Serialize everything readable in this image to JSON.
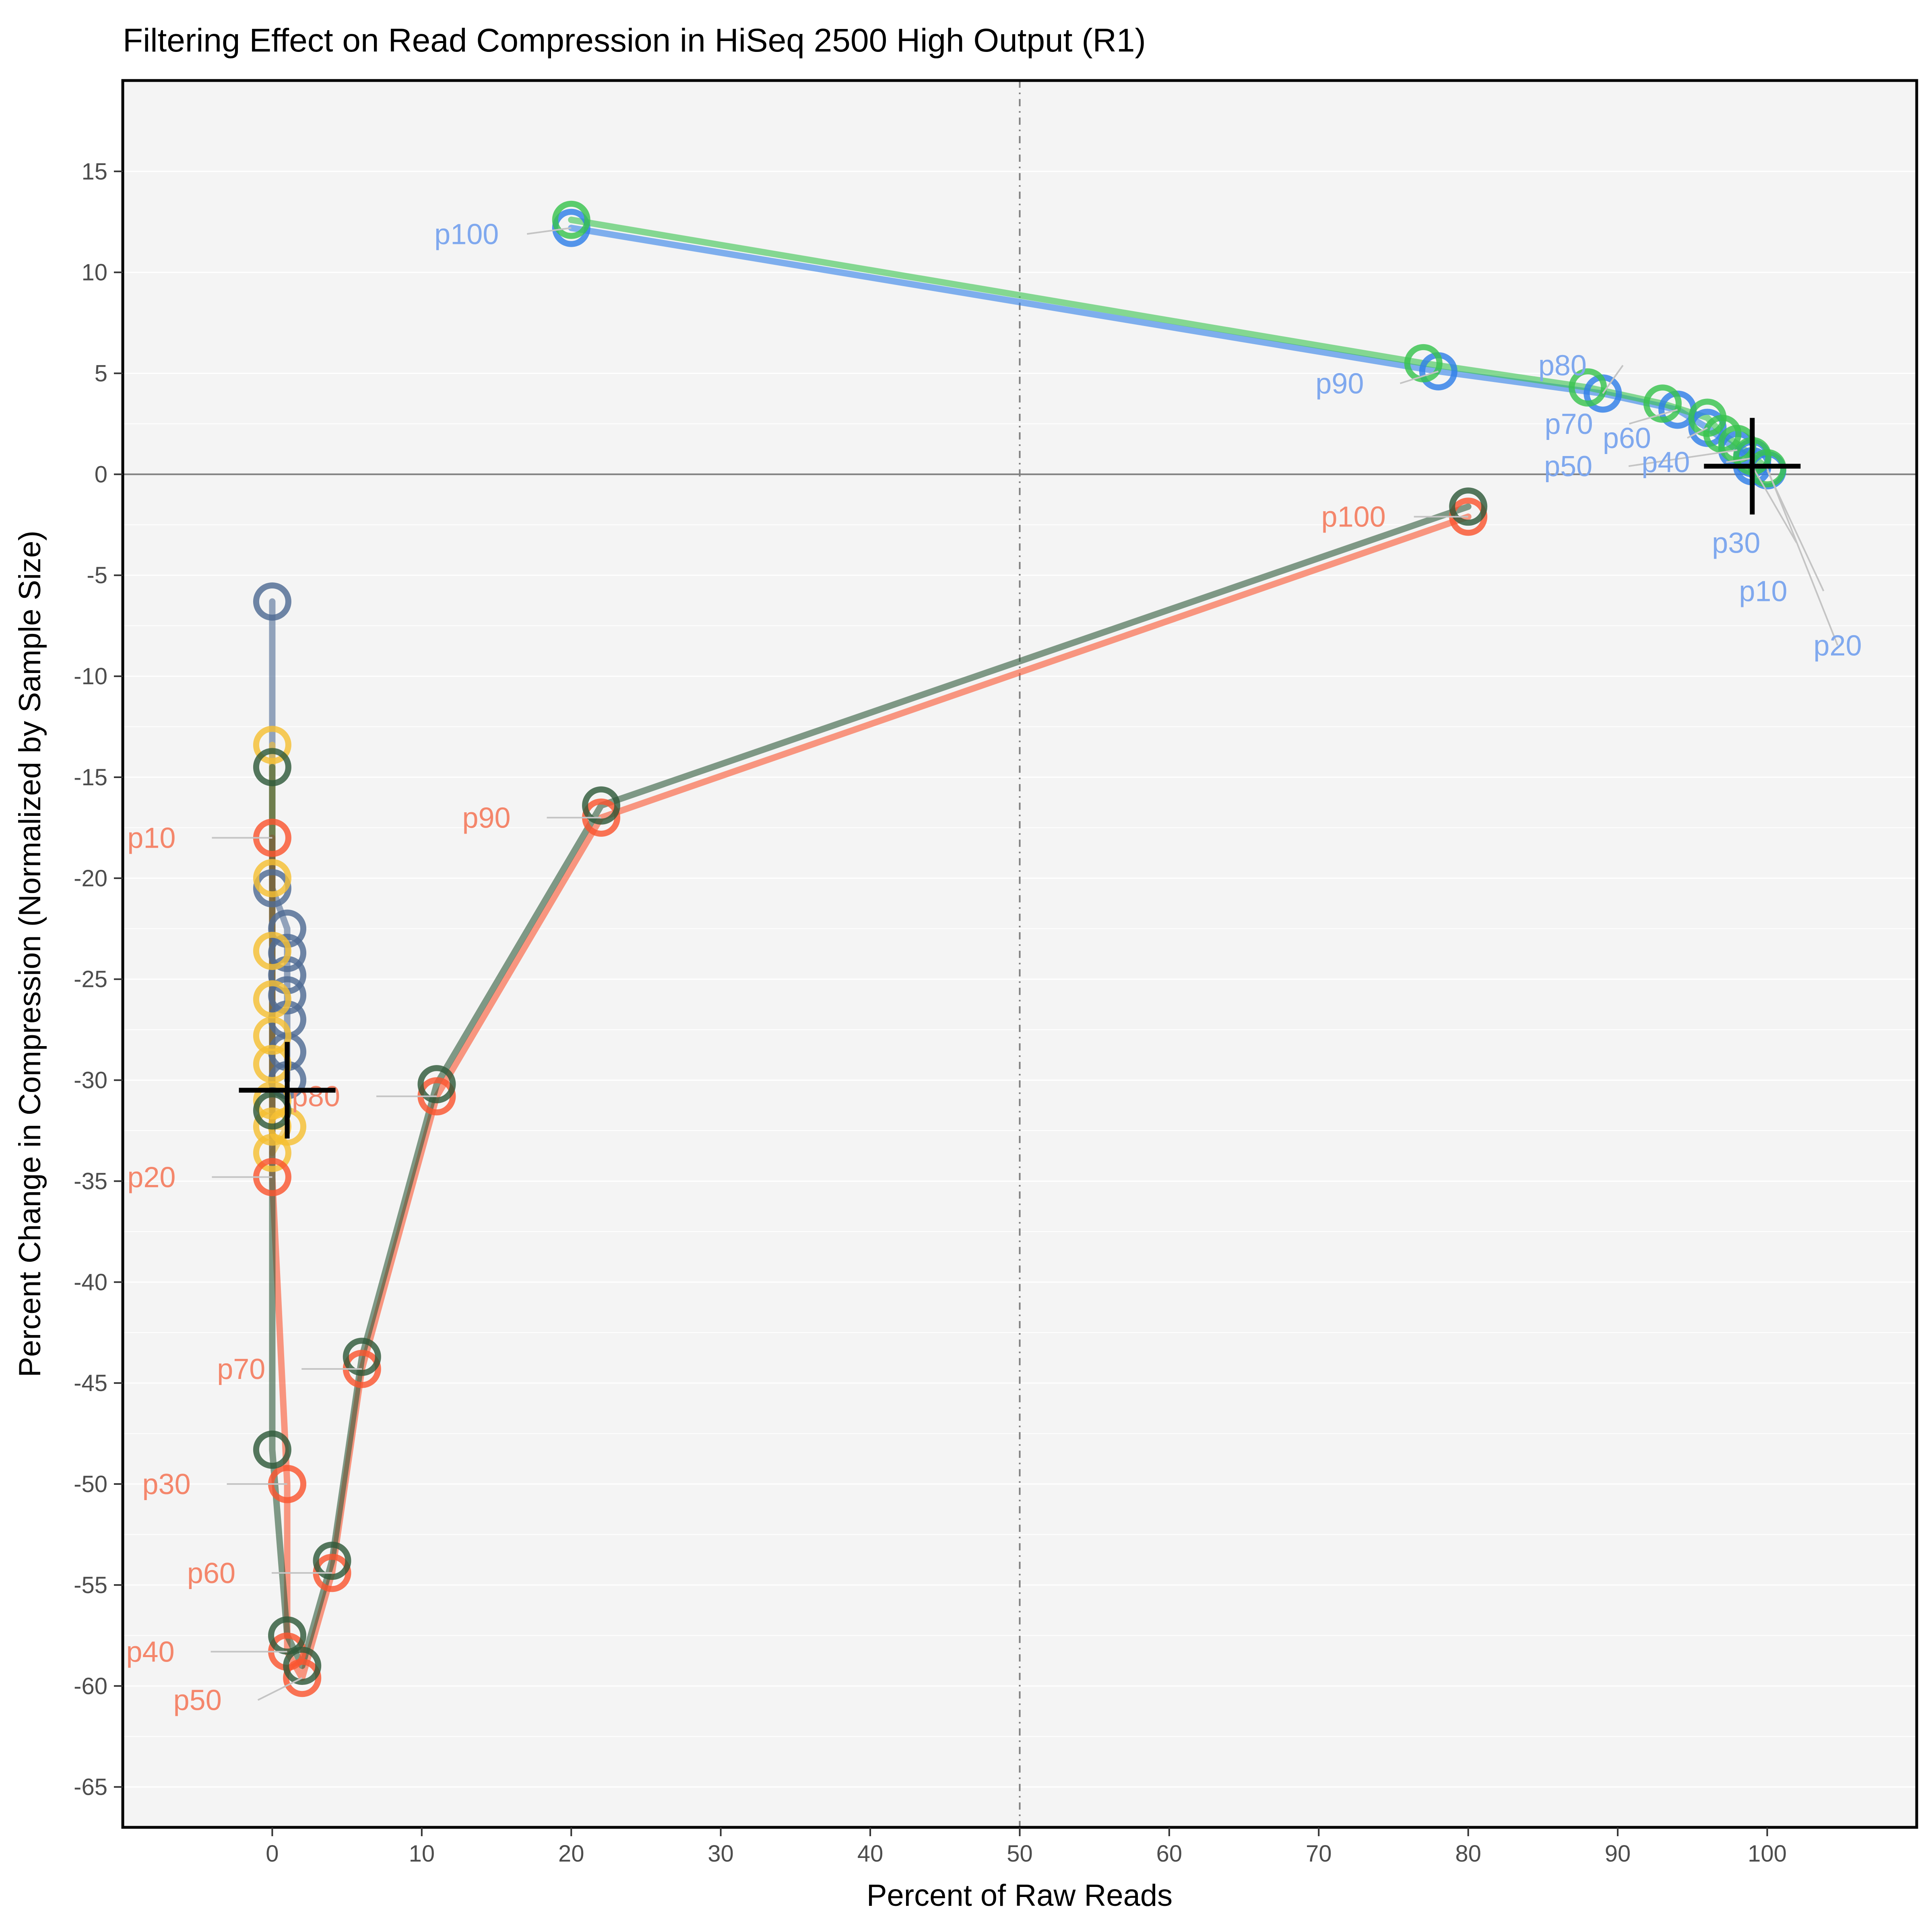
{
  "chart_data": {
    "type": "scatter",
    "title": "Filtering Effect on Read Compression in HiSeq 2500 High Output (R1)",
    "xlabel": "Percent of Raw Reads",
    "ylabel": "Percent Change in Compression (Normalized by Sample Size)",
    "xlim": [
      -10,
      110
    ],
    "ylim": [
      -67,
      19.5
    ],
    "xticks": [
      0,
      10,
      20,
      30,
      40,
      50,
      60,
      70,
      80,
      90,
      100
    ],
    "yticks": [
      15,
      10,
      5,
      0,
      -5,
      -10,
      -15,
      -20,
      -25,
      -30,
      -35,
      -40,
      -45,
      -50,
      -55,
      -60,
      -65
    ],
    "grid": true,
    "legend": "none",
    "reference_lines": {
      "vertical_x": 50,
      "horizontal_y": 0
    },
    "series": [
      {
        "color": "#4f6b94",
        "points": [
          [
            0,
            -6.3
          ],
          [
            0,
            -20.5
          ],
          [
            1,
            -22.5
          ],
          [
            1,
            -23.7
          ],
          [
            1,
            -24.8
          ],
          [
            1,
            -25.8
          ],
          [
            1,
            -27
          ],
          [
            1,
            -28.6
          ],
          [
            1,
            -30
          ]
        ]
      },
      {
        "color": "#f5c033",
        "points": [
          [
            0,
            -13.4
          ],
          [
            0,
            -20
          ],
          [
            0,
            -23.6
          ],
          [
            0,
            -26
          ],
          [
            0,
            -27.8
          ],
          [
            0,
            -29.2
          ],
          [
            0,
            -31
          ],
          [
            0,
            -32.3
          ],
          [
            1,
            -32.3
          ],
          [
            0,
            -33.6
          ]
        ]
      },
      {
        "color": "#fa5530",
        "points": [
          [
            0,
            -18
          ],
          [
            0,
            -34.8
          ],
          [
            1,
            -50
          ],
          [
            1,
            -58.3
          ],
          [
            2,
            -59.6
          ],
          [
            4,
            -54.4
          ],
          [
            6,
            -44.3
          ],
          [
            11,
            -30.8
          ],
          [
            22,
            -17
          ],
          [
            80,
            -2.1
          ]
        ]
      },
      {
        "color": "#2f5a3a",
        "points": [
          [
            0,
            -14.5
          ],
          [
            0,
            -31.5
          ],
          [
            0,
            -48.3
          ],
          [
            1,
            -57.5
          ],
          [
            2,
            -59
          ],
          [
            4,
            -53.8
          ],
          [
            6,
            -43.7
          ],
          [
            11,
            -30.2
          ],
          [
            22,
            -16.4
          ],
          [
            80,
            -1.6
          ]
        ]
      },
      {
        "color": "#2f7fe8",
        "points": [
          [
            100,
            0.2
          ],
          [
            99,
            0.4
          ],
          [
            99,
            0.8
          ],
          [
            98,
            1.2
          ],
          [
            96,
            2.3
          ],
          [
            94,
            3.2
          ],
          [
            89,
            4
          ],
          [
            78,
            5.1
          ],
          [
            20,
            12.2
          ]
        ]
      },
      {
        "color": "#38c34e",
        "points": [
          [
            100,
            0.3
          ],
          [
            99,
            0.9
          ],
          [
            98,
            1.5
          ],
          [
            97,
            2
          ],
          [
            96,
            2.8
          ],
          [
            93,
            3.5
          ],
          [
            88,
            4.3
          ],
          [
            77,
            5.5
          ],
          [
            20,
            12.6
          ]
        ]
      }
    ],
    "medians": [
      {
        "x": 1,
        "y": -30.5
      },
      {
        "x": 99,
        "y": 0.4
      }
    ],
    "point_labels": [
      {
        "text": "p100",
        "x": 20,
        "y": 12.2,
        "color": "#7fa8ee"
      },
      {
        "text": "p90",
        "x": 78,
        "y": 5.1,
        "color": "#7fa8ee"
      },
      {
        "text": "p80",
        "x": 89,
        "y": 4,
        "color": "#7fa8ee"
      },
      {
        "text": "p70",
        "x": 94,
        "y": 3.2,
        "color": "#7fa8ee"
      },
      {
        "text": "p60",
        "x": 96,
        "y": 2.3,
        "color": "#7fa8ee"
      },
      {
        "text": "p50",
        "x": 98,
        "y": 1.2,
        "color": "#7fa8ee"
      },
      {
        "text": "p40",
        "x": 99,
        "y": 0.8,
        "color": "#7fa8ee"
      },
      {
        "text": "p30",
        "x": 99,
        "y": 0.4,
        "color": "#7fa8ee"
      },
      {
        "text": "p10",
        "x": 100,
        "y": 0.2,
        "color": "#7fa8ee"
      },
      {
        "text": "p20",
        "x": 100,
        "y": 0.3,
        "color": "#7fa8ee"
      },
      {
        "text": "p100",
        "x": 80,
        "y": -2.1,
        "color": "#f4866b"
      },
      {
        "text": "p90",
        "x": 22,
        "y": -17,
        "color": "#f4866b"
      },
      {
        "text": "p10",
        "x": 0,
        "y": -18,
        "color": "#f4866b"
      },
      {
        "text": "p80",
        "x": 11,
        "y": -30.8,
        "color": "#f4866b"
      },
      {
        "text": "p20",
        "x": 0,
        "y": -34.8,
        "color": "#f4866b"
      },
      {
        "text": "p70",
        "x": 6,
        "y": -44.3,
        "color": "#f4866b"
      },
      {
        "text": "p30",
        "x": 1,
        "y": -50,
        "color": "#f4866b"
      },
      {
        "text": "p60",
        "x": 4,
        "y": -54.4,
        "color": "#f4866b"
      },
      {
        "text": "p40",
        "x": 1,
        "y": -58.3,
        "color": "#f4866b"
      },
      {
        "text": "p50",
        "x": 2,
        "y": -59.6,
        "color": "#f4866b"
      }
    ]
  }
}
